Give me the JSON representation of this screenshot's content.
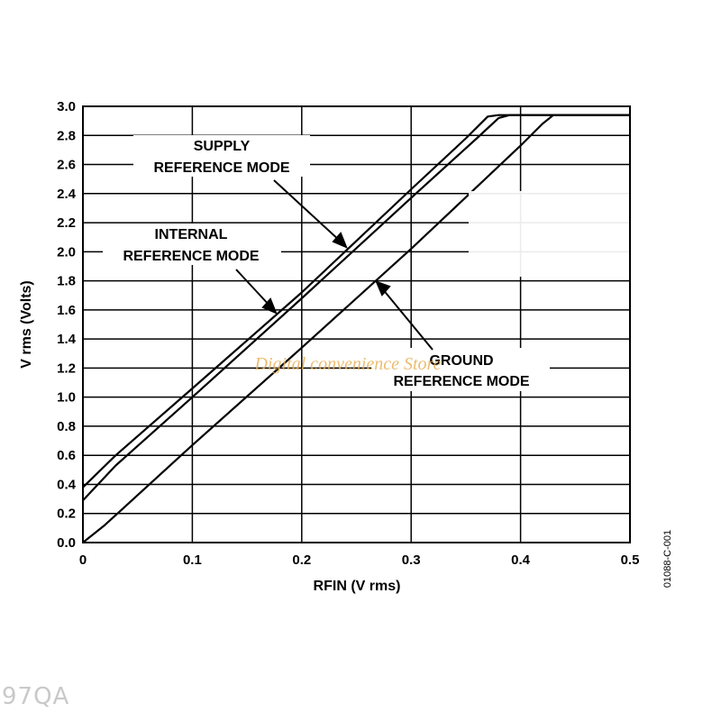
{
  "chart_data": {
    "type": "line",
    "xlabel": "RFIN (V rms)",
    "ylabel": "V rms (Volts)",
    "xlim": [
      0,
      0.5
    ],
    "ylim": [
      0,
      3.0
    ],
    "x_ticks": [
      "0",
      "0.1",
      "0.2",
      "0.3",
      "0.4",
      "0.5"
    ],
    "y_ticks": [
      "0.0",
      "0.2",
      "0.4",
      "0.6",
      "0.8",
      "1.0",
      "1.2",
      "1.4",
      "1.6",
      "1.8",
      "2.0",
      "2.2",
      "2.4",
      "2.6",
      "2.8",
      "3.0"
    ],
    "grid": true,
    "series": [
      {
        "name": "SUPPLY REFERENCE MODE",
        "x": [
          0,
          0.03,
          0.1,
          0.2,
          0.3,
          0.35,
          0.37,
          0.38,
          0.5
        ],
        "y": [
          0.38,
          0.6,
          1.06,
          1.72,
          2.43,
          2.78,
          2.93,
          2.94,
          2.94
        ]
      },
      {
        "name": "INTERNAL REFERENCE MODE",
        "x": [
          0,
          0.03,
          0.1,
          0.2,
          0.3,
          0.36,
          0.38,
          0.39,
          0.5
        ],
        "y": [
          0.29,
          0.53,
          1.0,
          1.68,
          2.37,
          2.78,
          2.92,
          2.94,
          2.94
        ]
      },
      {
        "name": "GROUND REFERENCE MODE",
        "x": [
          0,
          0.02,
          0.1,
          0.2,
          0.3,
          0.4,
          0.42,
          0.43,
          0.5
        ],
        "y": [
          0.0,
          0.12,
          0.67,
          1.34,
          2.02,
          2.73,
          2.88,
          2.94,
          2.94
        ]
      }
    ],
    "annotations": [
      {
        "lines": [
          "SUPPLY",
          "REFERENCE MODE"
        ],
        "target": "SUPPLY REFERENCE MODE"
      },
      {
        "lines": [
          "INTERNAL",
          "REFERENCE MODE"
        ],
        "target": "INTERNAL REFERENCE MODE"
      },
      {
        "lines": [
          "GROUND",
          "REFERENCE MODE"
        ],
        "target": "GROUND REFERENCE MODE"
      }
    ],
    "figure_id": "01088-C-001"
  },
  "watermark_text": "Digital convenience Store",
  "bottom_mark": "97QA",
  "colors": {
    "line": "#000000",
    "grid": "#000000",
    "watermark": "#e8b15a",
    "bottom_mark": "#c9c9c9"
  }
}
